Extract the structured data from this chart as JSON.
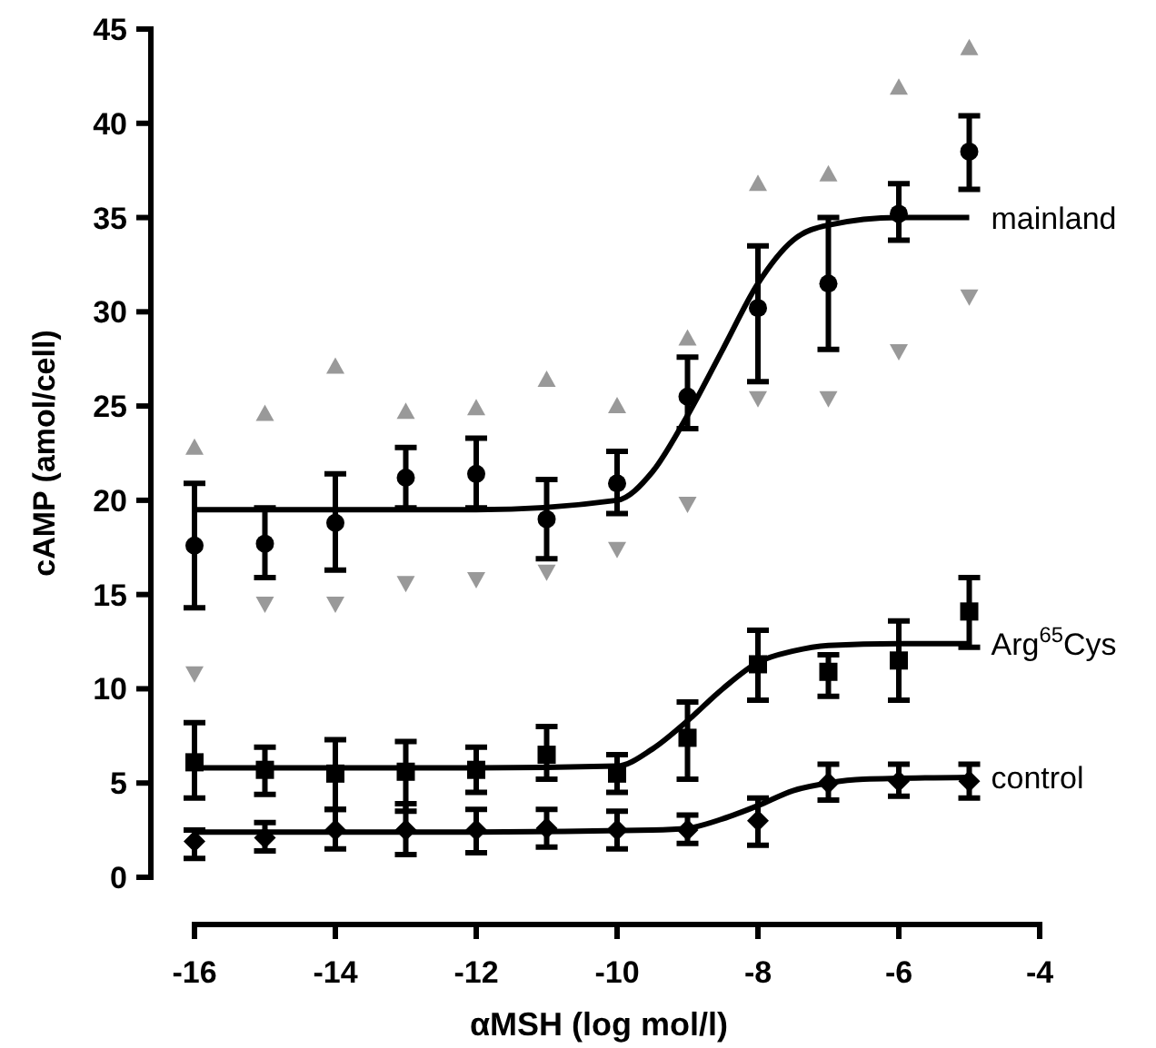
{
  "chart_data": {
    "type": "scatter",
    "xlabel": "αMSH (log mol/l)",
    "ylabel": "cAMP (amol/cell)",
    "xlim": [
      -16,
      -4
    ],
    "xticks": [
      -16,
      -14,
      -12,
      -10,
      -8,
      -6,
      -4
    ],
    "ylim": [
      0,
      45
    ],
    "yticks": [
      0,
      5,
      10,
      15,
      20,
      25,
      30,
      35,
      40,
      45
    ],
    "grid": false,
    "series": [
      {
        "type": "scatter",
        "color": "#999999",
        "marker": "triangle",
        "x": [
          -16,
          -15,
          -14,
          -13,
          -12,
          -11,
          -10,
          -9,
          -8,
          -7,
          -6,
          -5
        ],
        "values": [
          22.8,
          24.6,
          27.1,
          24.7,
          24.9,
          26.4,
          25.0,
          28.6,
          36.8,
          37.3,
          41.9,
          44.0
        ]
      },
      {
        "type": "scatter",
        "color": "#999999",
        "marker": "triangle-down",
        "x": [
          -16,
          -15,
          -14,
          -13,
          -12,
          -11,
          -10,
          -9,
          -8,
          -7,
          -6,
          -5
        ],
        "values": [
          10.8,
          14.5,
          14.5,
          15.6,
          15.8,
          16.2,
          17.4,
          19.8,
          25.4,
          25.4,
          27.9,
          30.8
        ]
      },
      {
        "type": "scatter",
        "color": "#000000",
        "marker": "circle",
        "x": [
          -16,
          -15,
          -14,
          -13,
          -12,
          -11,
          -10,
          -9,
          -8,
          -7,
          -6,
          -5
        ],
        "values": [
          17.6,
          17.7,
          18.8,
          21.2,
          21.4,
          19.0,
          20.9,
          25.5,
          30.2,
          31.5,
          35.2,
          38.5
        ],
        "errors": [
          [
            14.3,
            20.9
          ],
          [
            15.9,
            19.6
          ],
          [
            16.3,
            21.4
          ],
          [
            19.6,
            22.8
          ],
          [
            19.6,
            23.3
          ],
          [
            16.9,
            21.1
          ],
          [
            19.3,
            22.6
          ],
          [
            23.8,
            27.6
          ],
          [
            26.3,
            33.5
          ],
          [
            28.0,
            35.0
          ],
          [
            33.8,
            36.8
          ],
          [
            36.5,
            40.4
          ]
        ]
      },
      {
        "type": "line",
        "color": "#000000",
        "marker": "none",
        "name": "mainland",
        "x": [
          -16,
          -12,
          -10,
          -9.5,
          -9,
          -8.5,
          -8,
          -7.5,
          -7,
          -6,
          -5
        ],
        "values": [
          19.5,
          19.5,
          20.0,
          21.5,
          24.5,
          28.0,
          31.5,
          33.8,
          34.6,
          35.0,
          35.0
        ]
      },
      {
        "type": "scatter",
        "color": "#000000",
        "marker": "square",
        "x": [
          -16,
          -15,
          -14,
          -13,
          -12,
          -11,
          -10,
          -9,
          -8,
          -7,
          -6,
          -5
        ],
        "values": [
          6.1,
          5.7,
          5.5,
          5.6,
          5.7,
          6.5,
          5.5,
          7.4,
          11.3,
          10.9,
          11.5,
          14.1
        ],
        "errors": [
          [
            4.2,
            8.2
          ],
          [
            4.4,
            6.9
          ],
          [
            3.6,
            7.3
          ],
          [
            3.5,
            7.2
          ],
          [
            4.5,
            6.9
          ],
          [
            5.2,
            8.0
          ],
          [
            4.5,
            6.5
          ],
          [
            5.2,
            9.3
          ],
          [
            9.4,
            13.1
          ],
          [
            9.6,
            11.8
          ],
          [
            9.4,
            13.6
          ],
          [
            12.2,
            15.9
          ]
        ]
      },
      {
        "type": "line",
        "color": "#000000",
        "marker": "none",
        "name": "Arg$^{65}$Cys",
        "x": [
          -16,
          -12,
          -10,
          -9.5,
          -9,
          -8.5,
          -8,
          -7.5,
          -7,
          -6,
          -5
        ],
        "values": [
          5.8,
          5.8,
          5.9,
          6.8,
          8.3,
          10.0,
          11.4,
          12.0,
          12.3,
          12.4,
          12.4
        ]
      },
      {
        "type": "scatter",
        "color": "#000000",
        "marker": "diamond",
        "x": [
          -16,
          -15,
          -14,
          -13,
          -12,
          -11,
          -10,
          -9,
          -8,
          -7,
          -6,
          -5
        ],
        "values": [
          1.9,
          2.1,
          2.5,
          2.5,
          2.5,
          2.6,
          2.5,
          2.5,
          3.0,
          5.0,
          5.1,
          5.1
        ],
        "errors": [
          [
            1.0,
            2.5
          ],
          [
            1.4,
            2.9
          ],
          [
            1.5,
            3.6
          ],
          [
            1.2,
            3.9
          ],
          [
            1.3,
            3.6
          ],
          [
            1.6,
            3.6
          ],
          [
            1.5,
            3.5
          ],
          [
            1.8,
            3.3
          ],
          [
            1.7,
            4.2
          ],
          [
            4.1,
            6.0
          ],
          [
            4.3,
            6.0
          ],
          [
            4.2,
            6.0
          ]
        ]
      },
      {
        "type": "line",
        "color": "#000000",
        "marker": "none",
        "name": "control",
        "x": [
          -16,
          -12,
          -9.5,
          -9,
          -8.5,
          -8,
          -7.5,
          -7,
          -6.5,
          -5
        ],
        "values": [
          2.4,
          2.4,
          2.5,
          2.6,
          3.1,
          3.8,
          4.6,
          5.0,
          5.2,
          5.3
        ]
      }
    ]
  }
}
